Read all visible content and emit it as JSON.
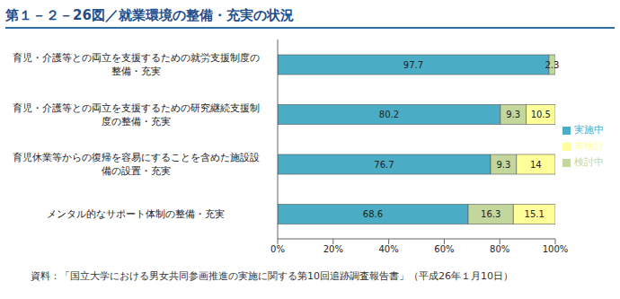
{
  "chart_data": {
    "type": "bar",
    "title": "第１－２－26図／就業環境の整備・充実の状況",
    "source": "資料：「国立大学における男女共同参画推進の実施に関する第10回追跡調査報告書」（平成26年１月10日）",
    "orientation": "horizontal",
    "stacked": true,
    "data_labels": true,
    "legend": "right",
    "grid": false,
    "categories": [
      "育児・介護等との両立を支援するための就労支援制度の整備・充実",
      "育児・介護等との両立を支援するための研究継続支援制度の整備・充実",
      "育児休業等からの復帰を容易にすることを含めた施設設備の設置・充実",
      "メンタル的なサポート体制の整備・充実"
    ],
    "series": [
      {
        "name": "実施中",
        "color": "#4bacc6",
        "values": [
          97.7,
          80.2,
          76.7,
          68.6
        ]
      },
      {
        "name": "検討中",
        "color": "#c3d69b",
        "values": [
          2.3,
          9.3,
          9.3,
          16.3
        ]
      },
      {
        "name": "未検討",
        "color": "#ffff99",
        "values": [
          null,
          10.5,
          14.0,
          15.1
        ]
      }
    ],
    "xlim": [
      0,
      100
    ],
    "xticks": [
      {
        "value": 0,
        "label": "0%"
      },
      {
        "value": 20,
        "label": "20%"
      },
      {
        "value": 40,
        "label": "40%"
      },
      {
        "value": 60,
        "label": "60%"
      },
      {
        "value": 80,
        "label": "80%"
      },
      {
        "value": 100,
        "label": "100%"
      }
    ]
  }
}
